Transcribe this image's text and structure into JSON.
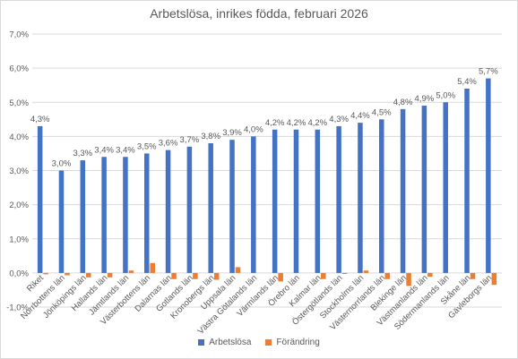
{
  "chart_data": {
    "type": "bar",
    "title": "Arbetslösa, inrikes födda, februari 2026",
    "categories": [
      "Riket",
      "Norrbottens län",
      "Jönköpings län",
      "Hallands län",
      "Jämtlands län",
      "Västerbottens län",
      "Dalarnas län",
      "Gotlands län",
      "Kronobergs län",
      "Uppsala län",
      "Västra Götalands län",
      "Värmlands län",
      "Örebro län",
      "Kalmar län",
      "Östergötlands län",
      "Stockholms län",
      "Västernorrlands län",
      "Blekinge län",
      "Västmanlands län",
      "Södermanlands län",
      "Skåne län",
      "Gävleborgs län"
    ],
    "series": [
      {
        "name": "Arbetslösa",
        "color": "#4472c4",
        "values": [
          4.3,
          3.0,
          3.3,
          3.4,
          3.4,
          3.5,
          3.6,
          3.7,
          3.8,
          3.9,
          4.0,
          4.2,
          4.2,
          4.2,
          4.3,
          4.4,
          4.5,
          4.8,
          4.9,
          5.0,
          5.4,
          5.7
        ],
        "data_labels": [
          "4,3%",
          "3,0%",
          "3,3%",
          "3,4%",
          "3,4%",
          "3,5%",
          "3,6%",
          "3,7%",
          "3,8%",
          "3,9%",
          "4,0%",
          "4,2%",
          "4,2%",
          "4,2%",
          "4,3%",
          "4,4%",
          "4,5%",
          "4,8%",
          "4,9%",
          "5,0%",
          "5,4%",
          "5,7%"
        ]
      },
      {
        "name": "Förändring",
        "color": "#ed7d31",
        "values": [
          -0.04,
          -0.07,
          -0.13,
          -0.13,
          0.07,
          0.29,
          -0.18,
          -0.18,
          -0.2,
          0.17,
          0.0,
          -0.25,
          0.0,
          -0.18,
          -0.03,
          0.07,
          -0.18,
          -0.38,
          -0.11,
          0.0,
          -0.18,
          -0.35
        ]
      }
    ],
    "ylim": [
      -1.0,
      7.0
    ],
    "yticks": [
      -1.0,
      0.0,
      1.0,
      2.0,
      3.0,
      4.0,
      5.0,
      6.0,
      7.0
    ],
    "ytick_labels": [
      "-1,0%",
      "0,0%",
      "1,0%",
      "2,0%",
      "3,0%",
      "4,0%",
      "5,0%",
      "6,0%",
      "7,0%"
    ],
    "xlabel": "",
    "ylabel": "",
    "grid": true,
    "legend_position": "bottom",
    "colors": {
      "grid": "#d9d9d9",
      "text": "#595959"
    }
  }
}
